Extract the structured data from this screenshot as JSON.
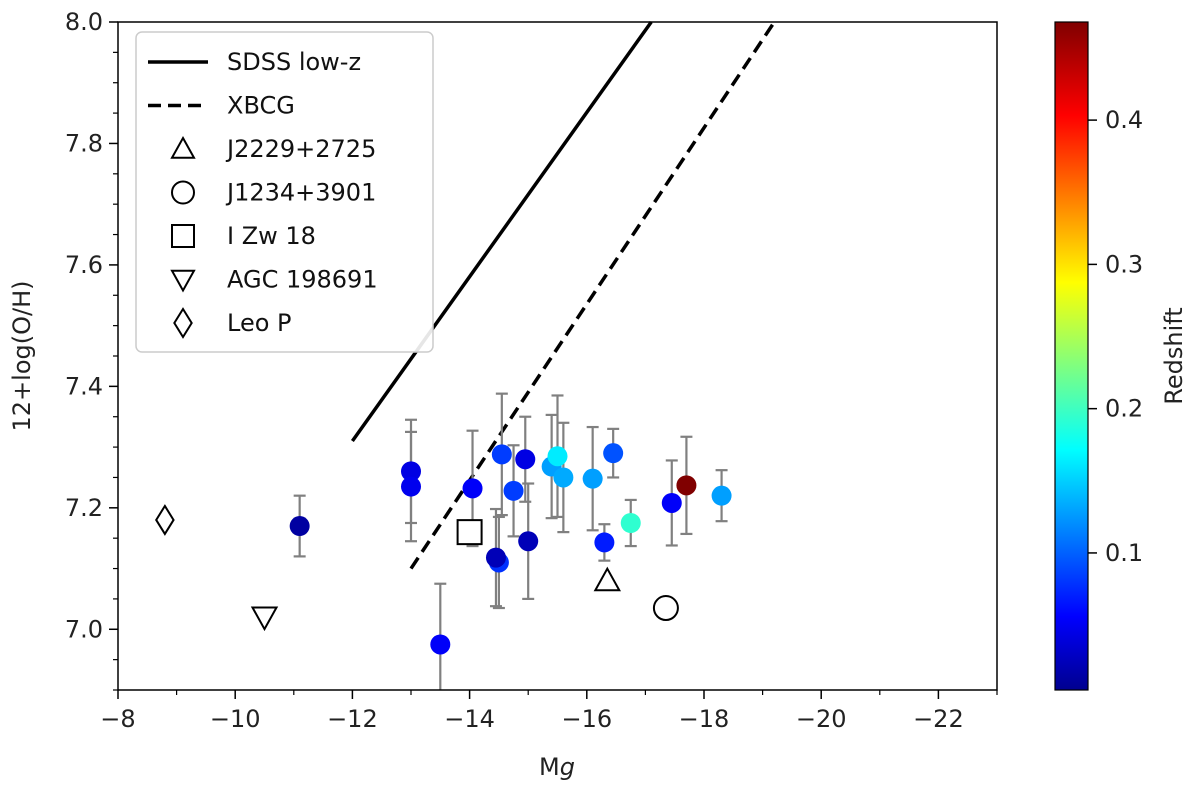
{
  "chart_data": {
    "type": "scatter",
    "xlabel_main": "M",
    "xlabel_sub": "g",
    "ylabel": "12+log(O/H)",
    "colorbar_label": "Redshift",
    "xlim": [
      -8,
      -23
    ],
    "ylim": [
      6.9,
      8.0
    ],
    "x_ticks": [
      -8,
      -10,
      -12,
      -14,
      -16,
      -18,
      -20,
      -22
    ],
    "x_tick_labels": [
      "−8",
      "−10",
      "−12",
      "−14",
      "−16",
      "−18",
      "−20",
      "−22"
    ],
    "y_ticks": [
      7.0,
      7.2,
      7.4,
      7.6,
      7.8,
      8.0
    ],
    "y_tick_labels": [
      "7.0",
      "7.2",
      "7.4",
      "7.6",
      "7.8",
      "8.0"
    ],
    "colorbar_range": [
      0.005,
      0.468
    ],
    "colorbar_ticks": [
      0.1,
      0.2,
      0.3,
      0.4
    ],
    "colorbar_tick_labels": [
      "0.1",
      "0.2",
      "0.3",
      "0.4"
    ],
    "colormap": "jet",
    "lines": [
      {
        "name": "SDSS low-z",
        "style": "solid",
        "x": [
          -12.0,
          -17.1
        ],
        "y": [
          7.31,
          8.0
        ]
      },
      {
        "name": "XBCG",
        "style": "dashed",
        "x": [
          -13.0,
          -19.2
        ],
        "y": [
          7.1,
          8.0
        ]
      }
    ],
    "points": [
      {
        "x": -11.1,
        "y": 7.17,
        "err": 0.05,
        "z": 0.02
      },
      {
        "x": -13.0,
        "y": 7.26,
        "err": 0.085,
        "z": 0.05
      },
      {
        "x": -13.0,
        "y": 7.235,
        "err": 0.09,
        "z": 0.055
      },
      {
        "x": -13.5,
        "y": 6.975,
        "err": 0.1,
        "z": 0.06
      },
      {
        "x": -14.05,
        "y": 7.232,
        "err": 0.095,
        "z": 0.06
      },
      {
        "x": -14.5,
        "y": 7.11,
        "err": 0.075,
        "z": 0.085
      },
      {
        "x": -14.45,
        "y": 7.118,
        "err": 0.08,
        "z": 0.03
      },
      {
        "x": -14.55,
        "y": 7.288,
        "err": 0.1,
        "z": 0.09
      },
      {
        "x": -14.75,
        "y": 7.228,
        "err": 0.075,
        "z": 0.09
      },
      {
        "x": -14.95,
        "y": 7.28,
        "err": 0.07,
        "z": 0.05
      },
      {
        "x": -15.0,
        "y": 7.145,
        "err": 0.095,
        "z": 0.03
      },
      {
        "x": -15.4,
        "y": 7.268,
        "err": 0.085,
        "z": 0.135
      },
      {
        "x": -15.5,
        "y": 7.285,
        "err": 0.1,
        "z": 0.17
      },
      {
        "x": -15.6,
        "y": 7.25,
        "err": 0.09,
        "z": 0.14
      },
      {
        "x": -16.1,
        "y": 7.248,
        "err": 0.085,
        "z": 0.135
      },
      {
        "x": -16.3,
        "y": 7.143,
        "err": 0.03,
        "z": 0.075
      },
      {
        "x": -16.45,
        "y": 7.29,
        "err": 0.04,
        "z": 0.1
      },
      {
        "x": -16.75,
        "y": 7.175,
        "err": 0.038,
        "z": 0.2
      },
      {
        "x": -17.45,
        "y": 7.208,
        "err": 0.07,
        "z": 0.06
      },
      {
        "x": -17.7,
        "y": 7.237,
        "err": 0.08,
        "z": 0.468
      },
      {
        "x": -18.3,
        "y": 7.22,
        "err": 0.042,
        "z": 0.135
      }
    ],
    "reference_objects": [
      {
        "name": "J2229+2725",
        "marker": "triangle-up",
        "x": -16.35,
        "y": 7.08
      },
      {
        "name": "J1234+3901",
        "marker": "circle",
        "x": -17.35,
        "y": 7.035
      },
      {
        "name": "I Zw 18",
        "marker": "square",
        "x": -14.0,
        "y": 7.16
      },
      {
        "name": "AGC 198691",
        "marker": "triangle-down",
        "x": -10.5,
        "y": 7.02
      },
      {
        "name": "Leo P",
        "marker": "diamond",
        "x": -8.8,
        "y": 7.18
      }
    ],
    "legend": {
      "placement": "top-left",
      "entries": [
        "SDSS low-z",
        "XBCG",
        "J2229+2725",
        "J1234+3901",
        "I Zw 18",
        "AGC 198691",
        "Leo P"
      ]
    },
    "grid": false,
    "colors": {
      "errorbar": "#808080",
      "line": "#000000",
      "axes": "#000000"
    }
  }
}
